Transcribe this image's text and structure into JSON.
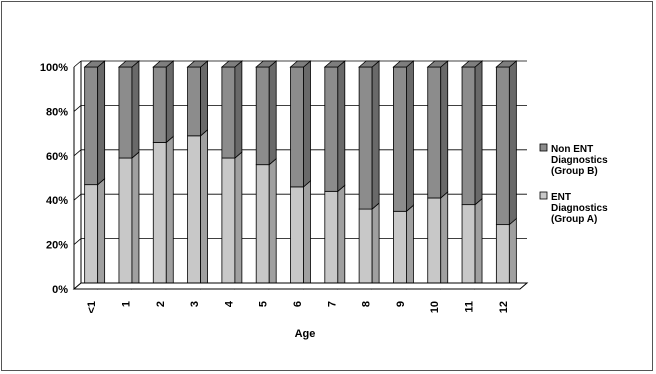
{
  "chart_data": {
    "type": "bar",
    "stacked": true,
    "normalized_percent": true,
    "xlabel": "Age",
    "ylabel": "",
    "categories": [
      "<1",
      "1",
      "2",
      "3",
      "4",
      "5",
      "6",
      "7",
      "8",
      "9",
      "10",
      "11",
      "12"
    ],
    "ylim": [
      0,
      100
    ],
    "y_ticks": [
      "0%",
      "20%",
      "40%",
      "60%",
      "80%",
      "100%"
    ],
    "grid": true,
    "legend_position": "right",
    "series": [
      {
        "name": "ENT Diagnostics (Group A)",
        "color": "#c8c8c8",
        "values": [
          47,
          59,
          66,
          69,
          59,
          56,
          46,
          44,
          36,
          35,
          41,
          38,
          29
        ]
      },
      {
        "name": "Non ENT Diagnostics (Group B)",
        "color": "#8c8c8c",
        "values": [
          53,
          41,
          34,
          31,
          41,
          44,
          54,
          56,
          64,
          65,
          59,
          62,
          71
        ]
      }
    ],
    "legend": [
      {
        "lines": [
          "Non ENT",
          "Diagnostics",
          "(Group B)"
        ],
        "color": "#8c8c8c"
      },
      {
        "lines": [
          "ENT",
          "Diagnostics",
          "(Group A)"
        ],
        "color": "#c8c8c8"
      }
    ]
  }
}
